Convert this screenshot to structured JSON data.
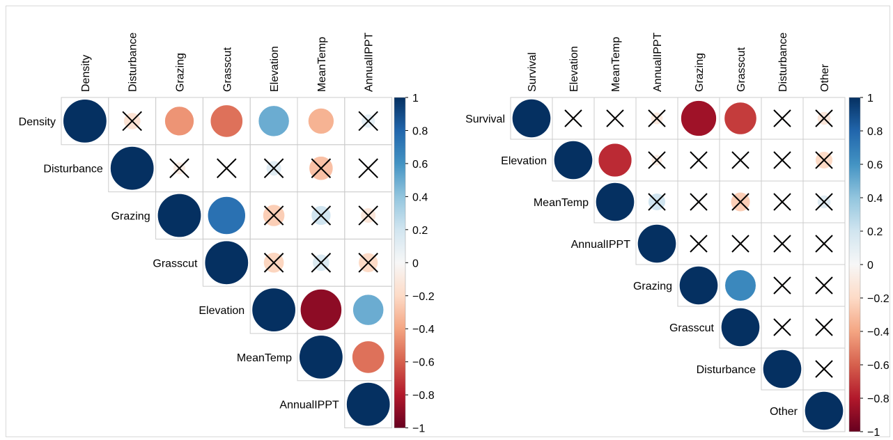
{
  "chart_data": [
    {
      "type": "heatmap",
      "variables": [
        "Density",
        "Disturbance",
        "Grazing",
        "Grasscut",
        "Elevation",
        "MeanTemp",
        "AnnualIPPT"
      ],
      "correlations": [
        [
          1,
          -0.15,
          -0.45,
          -0.55,
          0.5,
          -0.35,
          0.1
        ],
        [
          null,
          1,
          -0.08,
          -0.02,
          0.12,
          -0.3,
          -0.02
        ],
        [
          null,
          null,
          1,
          0.75,
          -0.25,
          0.2,
          -0.12
        ],
        [
          null,
          null,
          null,
          1,
          -0.22,
          0.15,
          -0.2
        ],
        [
          null,
          null,
          null,
          null,
          1,
          -0.9,
          0.5
        ],
        [
          null,
          null,
          null,
          null,
          null,
          1,
          -0.55
        ],
        [
          null,
          null,
          null,
          null,
          null,
          null,
          1
        ]
      ],
      "not_significant": [
        [
          false,
          true,
          false,
          false,
          false,
          false,
          true
        ],
        [
          false,
          false,
          true,
          true,
          true,
          true,
          true
        ],
        [
          false,
          false,
          false,
          false,
          true,
          true,
          true
        ],
        [
          false,
          false,
          false,
          false,
          true,
          true,
          true
        ],
        [
          false,
          false,
          false,
          false,
          false,
          false,
          false
        ],
        [
          false,
          false,
          false,
          false,
          false,
          false,
          false
        ],
        [
          false,
          false,
          false,
          false,
          false,
          false,
          false
        ]
      ],
      "colorbar": {
        "range": [
          -1,
          1
        ],
        "ticks": [
          "1",
          "0.8",
          "0.6",
          "0.4",
          "0.2",
          "0",
          "−0.2",
          "−0.4",
          "−0.6",
          "−0.8",
          "−1"
        ]
      },
      "title": ""
    },
    {
      "type": "heatmap",
      "variables": [
        "Survival",
        "Elevation",
        "MeanTemp",
        "AnnualIPPT",
        "Grazing",
        "Grasscut",
        "Disturbance",
        "Other"
      ],
      "correlations": [
        [
          1,
          -0.02,
          -0.02,
          -0.1,
          -0.85,
          -0.7,
          -0.02,
          -0.12
        ],
        [
          null,
          1,
          -0.75,
          -0.08,
          -0.02,
          -0.02,
          -0.02,
          -0.2
        ],
        [
          null,
          null,
          1,
          0.2,
          -0.02,
          -0.25,
          -0.02,
          0.12
        ],
        [
          null,
          null,
          null,
          1,
          -0.02,
          -0.02,
          -0.02,
          -0.02
        ],
        [
          null,
          null,
          null,
          null,
          1,
          0.65,
          -0.02,
          -0.02
        ],
        [
          null,
          null,
          null,
          null,
          null,
          1,
          -0.02,
          -0.02
        ],
        [
          null,
          null,
          null,
          null,
          null,
          null,
          1,
          -0.02
        ],
        [
          null,
          null,
          null,
          null,
          null,
          null,
          null,
          1
        ]
      ],
      "not_significant": [
        [
          false,
          true,
          true,
          true,
          false,
          false,
          true,
          true
        ],
        [
          false,
          false,
          false,
          true,
          true,
          true,
          true,
          true
        ],
        [
          false,
          false,
          false,
          true,
          true,
          true,
          true,
          true
        ],
        [
          false,
          false,
          false,
          false,
          true,
          true,
          true,
          true
        ],
        [
          false,
          false,
          false,
          false,
          false,
          false,
          true,
          true
        ],
        [
          false,
          false,
          false,
          false,
          false,
          false,
          true,
          true
        ],
        [
          false,
          false,
          false,
          false,
          false,
          false,
          false,
          true
        ],
        [
          false,
          false,
          false,
          false,
          false,
          false,
          false,
          false
        ]
      ],
      "colorbar": {
        "range": [
          -1,
          1
        ],
        "ticks": [
          "1",
          "0.8",
          "0.6",
          "0.4",
          "0.2",
          "0",
          "−0.2",
          "−0.4",
          "−0.6",
          "−0.8",
          "−1"
        ]
      },
      "title": ""
    }
  ]
}
